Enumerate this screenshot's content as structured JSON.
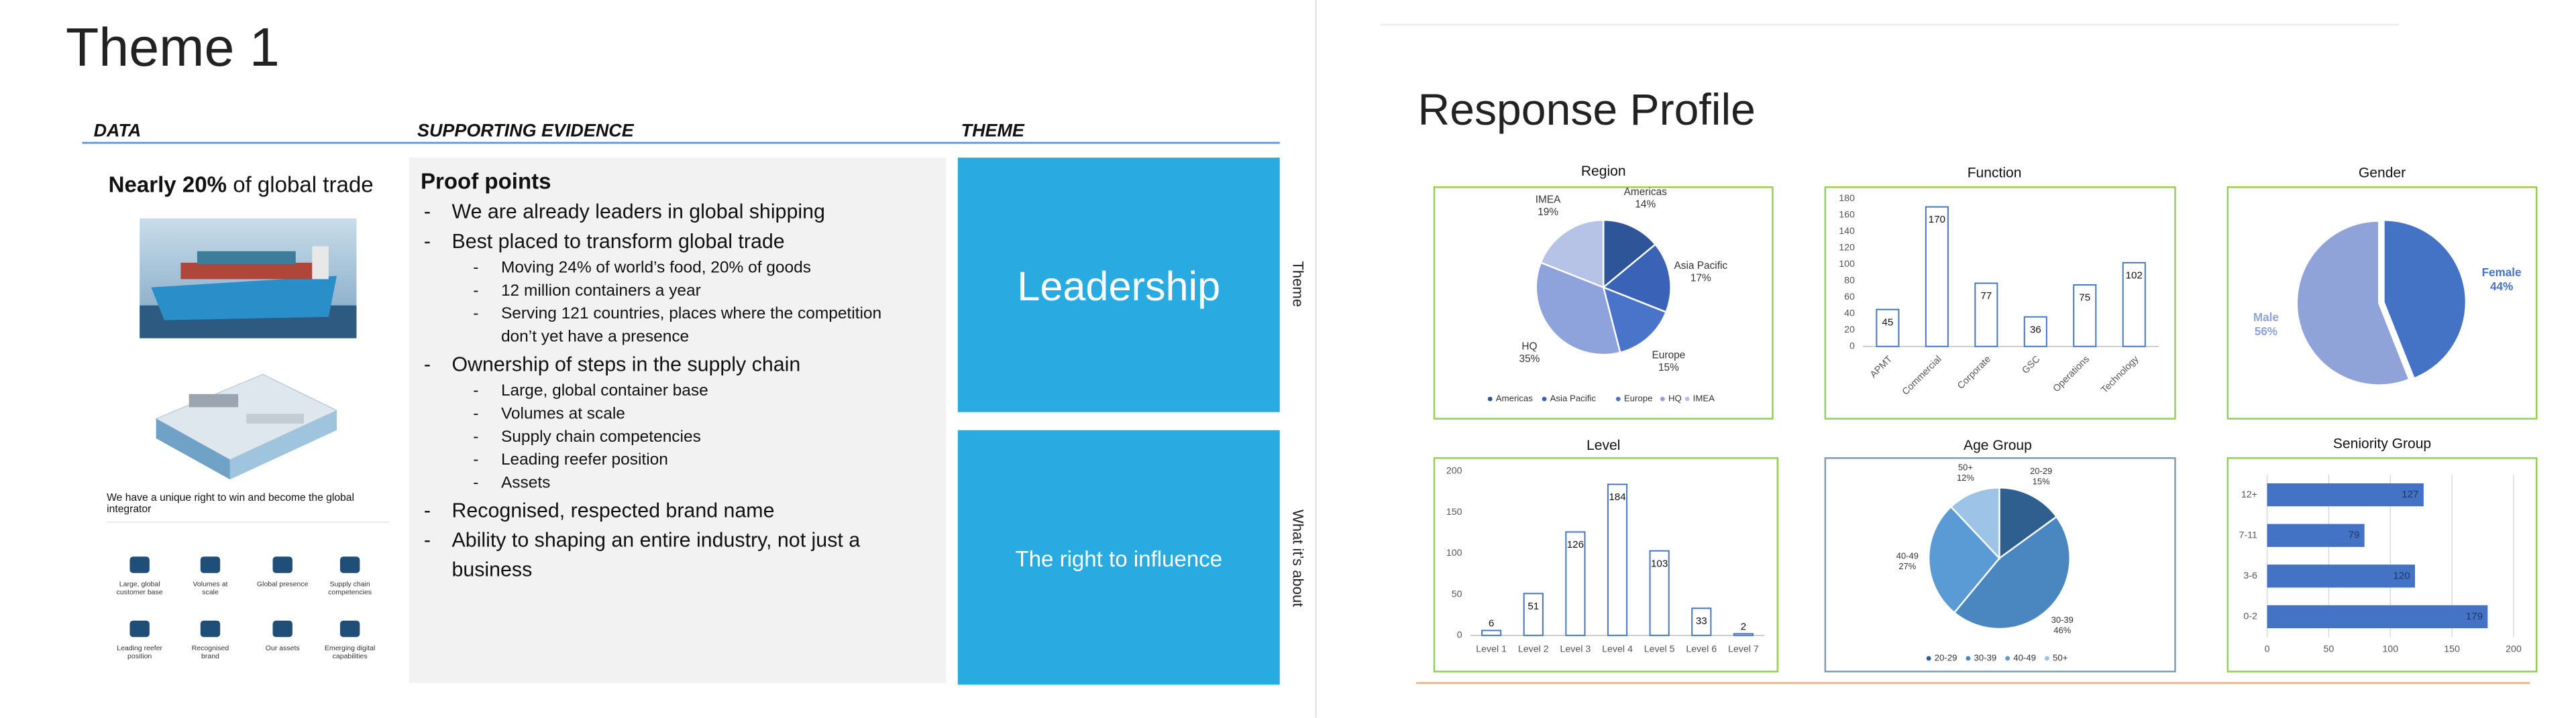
{
  "left_slide": {
    "title": "Theme 1",
    "headers": [
      "DATA",
      "SUPPORTING EVIDENCE",
      "THEME"
    ],
    "data_column": {
      "headline": {
        "bold": "Nearly 20%",
        "rest": "of global trade"
      },
      "caption": [
        "We have a unique right to win and become the global",
        "integrator"
      ],
      "icons": [
        [
          "Large, global",
          "customer base"
        ],
        [
          "Volumes at",
          "scale"
        ],
        [
          "Global presence"
        ],
        [
          "Supply chain",
          "competencies"
        ],
        [
          "Leading reefer",
          "position"
        ],
        [
          "Recognised",
          "brand"
        ],
        [
          "Our assets"
        ],
        [
          "Emerging digital",
          "capabilities"
        ]
      ]
    },
    "evidence": {
      "heading": "Proof points",
      "items": [
        {
          "lines": [
            "We are already leaders in global shipping"
          ]
        },
        {
          "lines": [
            "Best placed to transform global trade"
          ],
          "sub": [
            [
              "Moving 24% of world’s food, 20% of goods"
            ],
            [
              "12 million containers a year"
            ],
            [
              "Serving 121 countries, places where the competition",
              "don’t yet have a presence"
            ]
          ]
        },
        {
          "lines": [
            "Ownership of steps in the supply chain"
          ],
          "sub": [
            [
              "Large, global container base"
            ],
            [
              "Volumes at scale"
            ],
            [
              "Supply chain competencies"
            ],
            [
              "Leading reefer position"
            ],
            [
              "Assets"
            ]
          ]
        },
        {
          "lines": [
            "Recognised, respected brand name"
          ]
        },
        {
          "lines": [
            "Ability to shaping an entire industry, not just a",
            "business"
          ]
        }
      ]
    },
    "theme": [
      {
        "text": "Leadership",
        "side_label": "Theme"
      },
      {
        "text": "The right to influence",
        "side_label": "What it’s about"
      }
    ]
  },
  "right_slide": {
    "title": "Response Profile"
  },
  "chart_data": [
    {
      "type": "pie",
      "title": "Region",
      "categories": [
        "Americas",
        "Asia Pacific",
        "Europe",
        "HQ",
        "IMEA"
      ],
      "values": [
        14,
        17,
        15,
        35,
        19
      ],
      "value_labels": [
        "14%",
        "17%",
        "15%",
        "35%",
        "19%"
      ],
      "colors": [
        "#2e5597",
        "#3a63b8",
        "#4a74c9",
        "#8ea3db",
        "#b6c2e6"
      ],
      "legend": "bottom"
    },
    {
      "type": "bar",
      "title": "Function",
      "categories": [
        "APMT",
        "Commercial",
        "Corporate",
        "GSC",
        "Operations",
        "Technology"
      ],
      "values": [
        45,
        170,
        77,
        36,
        75,
        102
      ],
      "color": "#4472c4",
      "fill": "#ffffff",
      "ylim": [
        0,
        180
      ],
      "yticks": [
        0,
        20,
        40,
        60,
        80,
        100,
        120,
        140,
        160,
        180
      ]
    },
    {
      "type": "pie",
      "title": "Gender",
      "categories": [
        "Female",
        "Male"
      ],
      "values": [
        44,
        56
      ],
      "value_labels": [
        "44%",
        "56%"
      ],
      "colors": [
        "#4472c4",
        "#8fa3d8"
      ]
    },
    {
      "type": "bar",
      "title": "Level",
      "categories": [
        "Level 1",
        "Level 2",
        "Level 3",
        "Level 4",
        "Level 5",
        "Level 6",
        "Level 7"
      ],
      "values": [
        6,
        51,
        126,
        184,
        103,
        33,
        2
      ],
      "color": "#4472c4",
      "fill": "#ffffff",
      "ylim": [
        0,
        200
      ],
      "yticks": [
        0,
        50,
        100,
        150,
        200
      ]
    },
    {
      "type": "pie",
      "title": "Age Group",
      "categories": [
        "20-29",
        "30-39",
        "40-49",
        "50+"
      ],
      "values": [
        15,
        46,
        27,
        12
      ],
      "value_labels": [
        "15%",
        "46%",
        "27%",
        "12%"
      ],
      "colors": [
        "#2f5f8f",
        "#4a86c0",
        "#5b9bd5",
        "#9dc3e6"
      ],
      "legend": "bottom"
    },
    {
      "type": "bar",
      "orientation": "horizontal",
      "title": "Seniority Group",
      "categories": [
        "12+",
        "7-11",
        "3-6",
        "0-2"
      ],
      "values": [
        127,
        79,
        120,
        179
      ],
      "color": "#4472c4",
      "xlim": [
        0,
        200
      ],
      "xticks": [
        0,
        50,
        100,
        150,
        200
      ],
      "grid": true
    }
  ]
}
